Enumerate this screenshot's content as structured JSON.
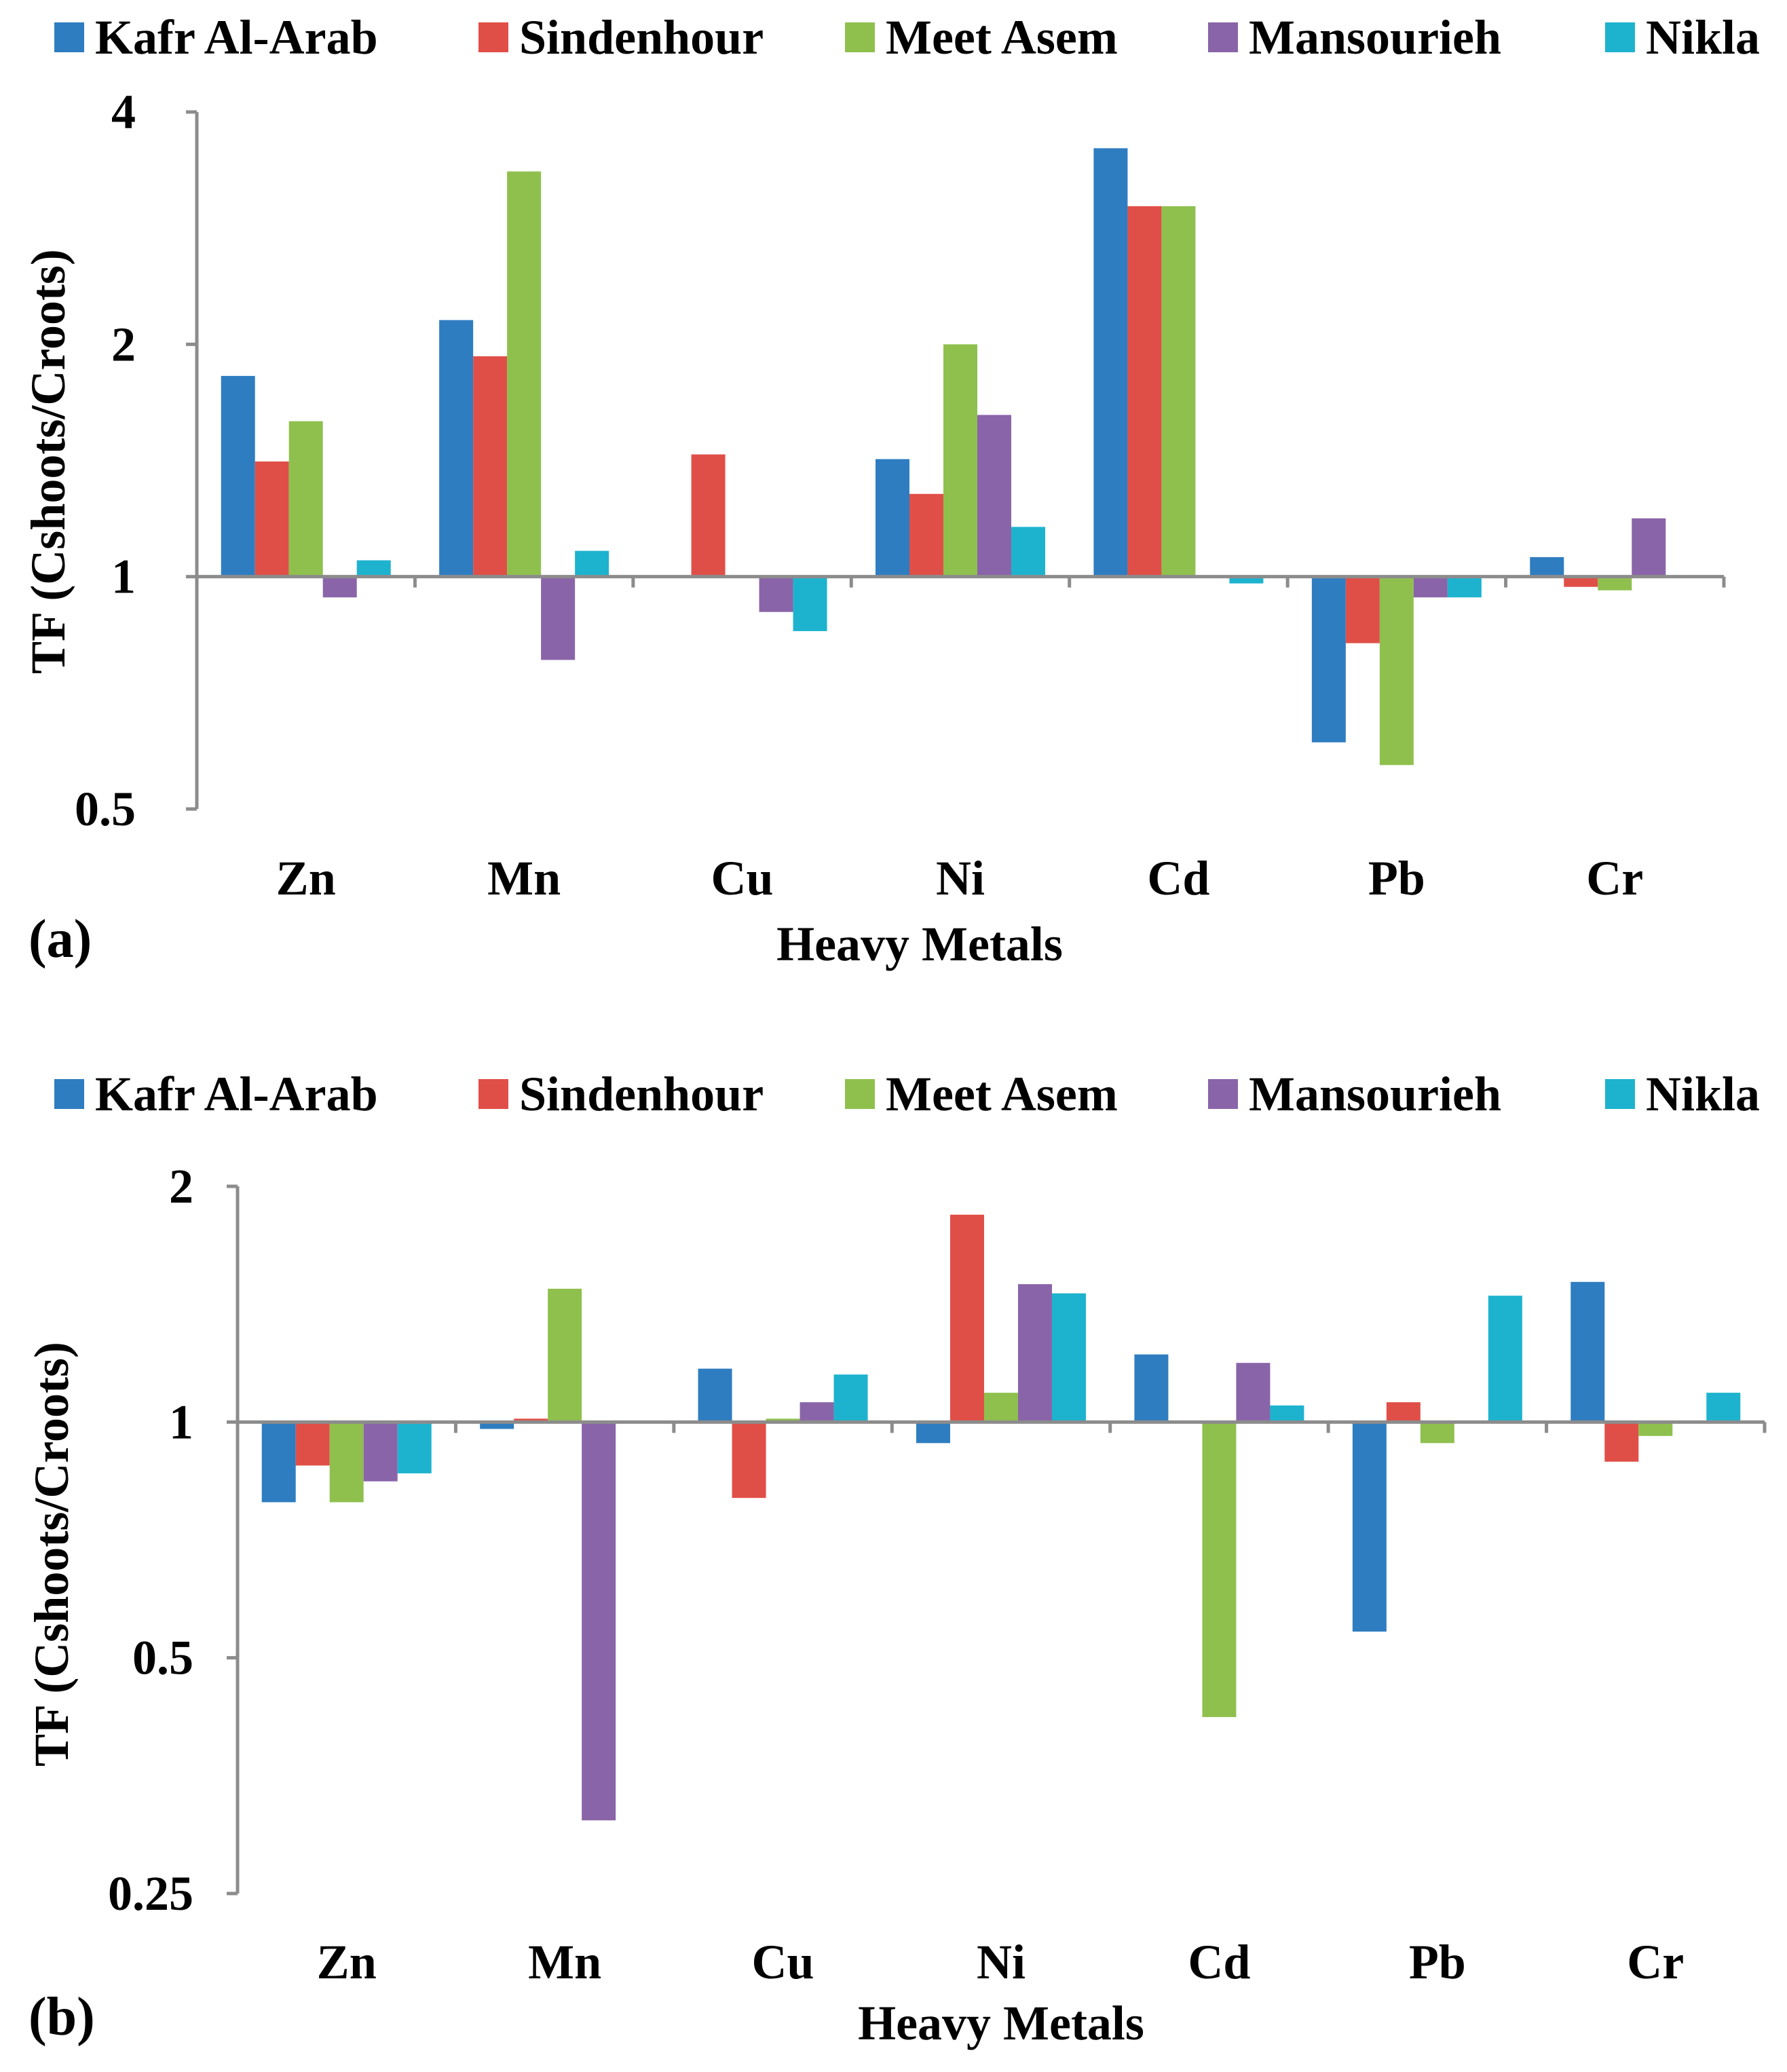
{
  "legend": [
    "Kafr Al-Arab",
    "Sindenhour",
    "Meet Asem",
    "Mansourieh",
    "Nikla"
  ],
  "colors": {
    "Kafr Al-Arab": "#2e7dc1",
    "Sindenhour": "#e04f47",
    "Meet Asem": "#8fc04e",
    "Mansourieh": "#8a64a8",
    "Nikla": "#1db3cf",
    "axis": "#8c8c8c"
  },
  "chart_data": [
    {
      "type": "bar",
      "panel_label": "(a)",
      "title": "",
      "xlabel": "Heavy Metals",
      "ylabel": "TF (Cshoots/Croots)",
      "yscale": "log2",
      "baseline": 1,
      "ylim": [
        0.5,
        4
      ],
      "yticks": [
        0.5,
        1,
        2,
        4
      ],
      "ytick_labels": [
        "0.5",
        "1",
        "2",
        "4"
      ],
      "categories": [
        "Zn",
        "Mn",
        "Cu",
        "Ni",
        "Cd",
        "Pb",
        "Cr"
      ],
      "series": [
        {
          "name": "Kafr Al-Arab",
          "values": [
            1.82,
            2.15,
            1.0,
            1.42,
            3.59,
            0.61,
            1.06
          ]
        },
        {
          "name": "Sindenhour",
          "values": [
            1.41,
            1.93,
            1.44,
            1.28,
            3.02,
            0.82,
            0.97
          ]
        },
        {
          "name": "Meet Asem",
          "values": [
            1.59,
            3.35,
            1.0,
            2.0,
            3.02,
            0.57,
            0.96
          ]
        },
        {
          "name": "Mansourieh",
          "values": [
            0.94,
            0.78,
            0.9,
            1.62,
            1.0,
            0.94,
            1.19
          ]
        },
        {
          "name": "Nikla",
          "values": [
            1.05,
            1.08,
            0.85,
            1.16,
            0.98,
            0.94,
            1.0
          ]
        }
      ]
    },
    {
      "type": "bar",
      "panel_label": "(b)",
      "title": "",
      "xlabel": "Heavy Metals",
      "ylabel": "TF (Cshoots/Croots)",
      "yscale": "log2",
      "baseline": 1,
      "ylim": [
        0.25,
        2
      ],
      "yticks": [
        0.25,
        0.5,
        1,
        2
      ],
      "ytick_labels": [
        "0.25",
        "0.5",
        "1",
        "2"
      ],
      "categories": [
        "Zn",
        "Mn",
        "Cu",
        "Ni",
        "Cd",
        "Pb",
        "Cr"
      ],
      "series": [
        {
          "name": "Kafr Al-Arab",
          "values": [
            0.79,
            0.98,
            1.17,
            0.94,
            1.22,
            0.54,
            1.51
          ]
        },
        {
          "name": "Sindenhour",
          "values": [
            0.88,
            1.01,
            0.8,
            1.84,
            1.0,
            1.06,
            0.89
          ]
        },
        {
          "name": "Meet Asem",
          "values": [
            0.79,
            1.48,
            1.01,
            1.09,
            0.42,
            0.94,
            0.96
          ]
        },
        {
          "name": "Mansourieh",
          "values": [
            0.84,
            0.31,
            1.06,
            1.5,
            1.19,
            1.0,
            1.0
          ]
        },
        {
          "name": "Nikla",
          "values": [
            0.86,
            1.0,
            1.15,
            1.46,
            1.05,
            1.45,
            1.09
          ]
        }
      ]
    }
  ]
}
